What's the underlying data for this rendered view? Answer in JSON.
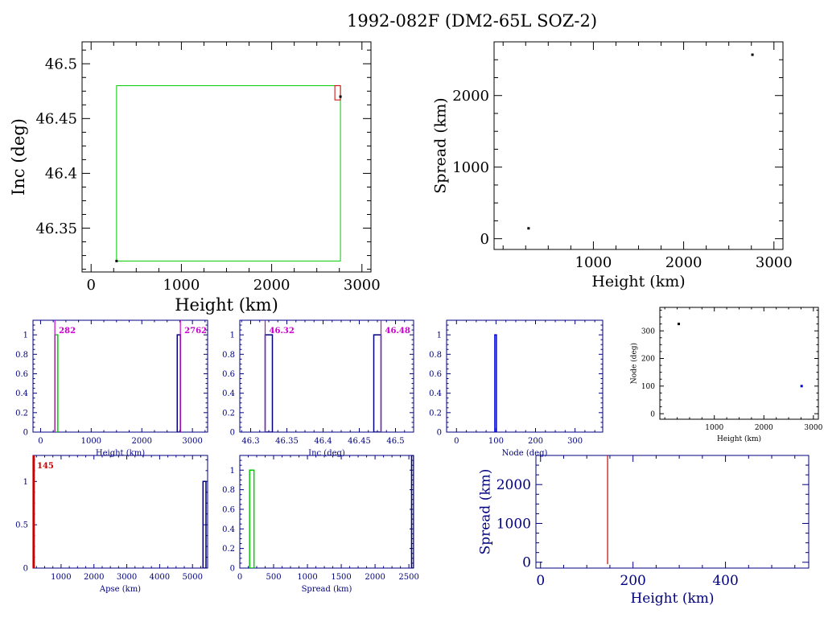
{
  "title": "1992-082F (DM2-65L SOZ-2)",
  "chart_data": [
    {
      "id": "inc-height",
      "type": "scatter",
      "xlabel": "Height (km)",
      "ylabel": "Inc (deg)",
      "xlim": [
        -100,
        3100
      ],
      "ylim": [
        46.31,
        46.52
      ],
      "xticks": [
        0,
        1000,
        2000,
        3000
      ],
      "yticks": [
        46.35,
        46.4,
        46.45,
        46.5
      ],
      "color": "#000000",
      "points": [
        {
          "x": 282,
          "y": 46.32
        },
        {
          "x": 2762,
          "y": 46.47
        }
      ],
      "boxes": [
        {
          "x0": 282,
          "x1": 2762,
          "y0": 46.32,
          "y1": 46.48,
          "color": "#00cc00"
        },
        {
          "x0": 2700,
          "x1": 2762,
          "y0": 46.467,
          "y1": 46.48,
          "color": "#cc0000"
        }
      ]
    },
    {
      "id": "spread-height",
      "type": "scatter",
      "xlabel": "Height (km)",
      "ylabel": "Spread (km)",
      "xlim": [
        -100,
        3100
      ],
      "ylim": [
        -150,
        2750
      ],
      "xticks": [
        1000,
        2000,
        3000
      ],
      "yticks": [
        0,
        1000,
        2000
      ],
      "color": "#000000",
      "points": [
        {
          "x": 282,
          "y": 145
        },
        {
          "x": 2762,
          "y": 2570
        }
      ]
    },
    {
      "id": "hist-height",
      "type": "bar",
      "xlabel": "Height (km)",
      "ylabel": "",
      "xlim": [
        -150,
        3300
      ],
      "ylim": [
        0,
        1.15
      ],
      "xticks": [
        0,
        1000,
        2000,
        3000
      ],
      "yticks": [
        0,
        0.2,
        0.4,
        0.6,
        0.8,
        1
      ],
      "color": "#000080",
      "bars": [
        {
          "x0": 282,
          "x1": 340,
          "value": 1,
          "color": "#00cc00"
        },
        {
          "x0": 2700,
          "x1": 2762,
          "value": 1,
          "color": "#000080"
        }
      ],
      "markers": [
        {
          "x": 282,
          "label": "282",
          "color": "#cc00cc"
        },
        {
          "x": 2762,
          "label": "2762",
          "color": "#cc00cc"
        }
      ]
    },
    {
      "id": "hist-inc",
      "type": "bar",
      "xlabel": "Inc (deg)",
      "ylabel": "",
      "xlim": [
        46.285,
        46.525
      ],
      "ylim": [
        0,
        1.15
      ],
      "xticks": [
        46.3,
        46.35,
        46.4,
        46.45,
        46.5
      ],
      "yticks": [
        0,
        0.2,
        0.4,
        0.6,
        0.8,
        1
      ],
      "color": "#000080",
      "bars": [
        {
          "x0": 46.32,
          "x1": 46.33,
          "value": 1,
          "color": "#000080"
        },
        {
          "x0": 46.47,
          "x1": 46.48,
          "value": 1,
          "color": "#000080"
        }
      ],
      "markers": [
        {
          "x": 46.32,
          "label": "46.32",
          "color": "#cc00cc"
        },
        {
          "x": 46.48,
          "label": "46.48",
          "color": "#cc00cc"
        }
      ]
    },
    {
      "id": "hist-node",
      "type": "bar",
      "xlabel": "Node (deg)",
      "ylabel": "",
      "xlim": [
        -25,
        370
      ],
      "ylim": [
        0,
        1.15
      ],
      "xticks": [
        0,
        100,
        200,
        300
      ],
      "yticks": [
        0,
        0.2,
        0.4,
        0.6,
        0.8,
        1
      ],
      "color": "#000080",
      "bars": [
        {
          "x0": 97,
          "x1": 101,
          "value": 1,
          "color": "#0000cc"
        }
      ]
    },
    {
      "id": "node-height",
      "type": "scatter",
      "xlabel": "Height (km)",
      "ylabel": "Node (deg)",
      "xlim": [
        -100,
        3100
      ],
      "ylim": [
        -20,
        385
      ],
      "xticks": [
        1000,
        2000,
        3000
      ],
      "yticks": [
        0,
        100,
        200,
        300
      ],
      "color": "#000000",
      "points": [
        {
          "x": 282,
          "y": 325,
          "color": "#000000"
        },
        {
          "x": 2762,
          "y": 100,
          "color": "#0000cc"
        }
      ]
    },
    {
      "id": "hist-apse",
      "type": "bar",
      "xlabel": "Apse (km)",
      "ylabel": "",
      "xlim": [
        145,
        5460
      ],
      "ylim": [
        0,
        1.3
      ],
      "xticks": [
        1000,
        2000,
        3000,
        4000,
        5000
      ],
      "yticks": [
        0,
        0.5,
        1
      ],
      "color": "#000080",
      "bars": [
        {
          "x0": 145,
          "x1": 175,
          "value": 1.3,
          "color": "#cc0000"
        },
        {
          "x0": 5320,
          "x1": 5410,
          "value": 1,
          "color": "#000080"
        }
      ],
      "markers": [
        {
          "x": 145,
          "label": "145",
          "color": "#cc0000"
        }
      ]
    },
    {
      "id": "hist-spread",
      "type": "bar",
      "xlabel": "Spread (km)",
      "ylabel": "",
      "xlim": [
        0,
        2570
      ],
      "ylim": [
        0,
        1.15
      ],
      "xticks": [
        0,
        500,
        1000,
        1500,
        2000,
        2500
      ],
      "yticks": [
        0,
        0.2,
        0.4,
        0.6,
        0.8,
        1
      ],
      "color": "#000080",
      "bars": [
        {
          "x0": 145,
          "x1": 210,
          "value": 1,
          "color": "#00cc00"
        },
        {
          "x0": 2540,
          "x1": 2570,
          "value": 1.15,
          "color": "#000080"
        }
      ]
    },
    {
      "id": "spread-height-zoom",
      "type": "line",
      "xlabel": "Height (km)",
      "ylabel": "Spread (km)",
      "xlim": [
        -10,
        580
      ],
      "ylim": [
        -150,
        2750
      ],
      "xticks": [
        0,
        200,
        400
      ],
      "yticks": [
        0,
        1000,
        2000
      ],
      "color": "#000080",
      "lines": [
        {
          "x0": 145,
          "y0": -50,
          "x1": 145,
          "y1": 2750,
          "color": "#cc0000"
        }
      ]
    }
  ]
}
